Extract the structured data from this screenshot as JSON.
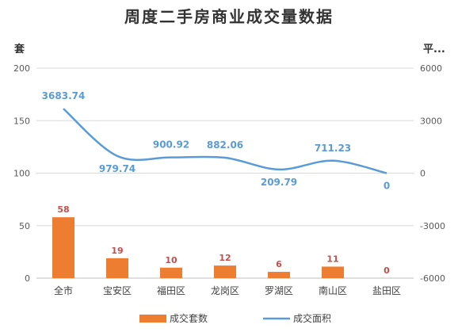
{
  "chart_data": {
    "type": "bar",
    "title": "周度二手房商业成交量数据",
    "y_left_label": "套",
    "y_right_label": "平...",
    "categories": [
      "全市",
      "宝安区",
      "福田区",
      "龙岗区",
      "罗湖区",
      "南山区",
      "盐田区"
    ],
    "y_left_range": [
      0,
      200
    ],
    "y_left_ticks": [
      "200",
      "150",
      "100",
      "50",
      "0"
    ],
    "y_right_range": [
      -6000,
      6000
    ],
    "y_right_ticks": [
      "6000",
      "3000",
      "0",
      "-3000",
      "-6000"
    ],
    "gridlines": true,
    "legend_position": "bottom",
    "series": [
      {
        "name": "成交套数",
        "type": "bar",
        "axis": "left",
        "color": "#ed7d31",
        "label_color": "#c0504d",
        "values": [
          58,
          19,
          10,
          12,
          6,
          11,
          0
        ],
        "labels": [
          "58",
          "19",
          "10",
          "12",
          "6",
          "11",
          "0"
        ]
      },
      {
        "name": "成交面积",
        "type": "line",
        "axis": "right",
        "color": "#5b9bd5",
        "values": [
          3683.74,
          979.74,
          900.92,
          882.06,
          209.79,
          711.23,
          0
        ],
        "labels": [
          "3683.74",
          "979.74",
          "900.92",
          "882.06",
          "209.79",
          "711.23",
          "0"
        ]
      }
    ]
  }
}
